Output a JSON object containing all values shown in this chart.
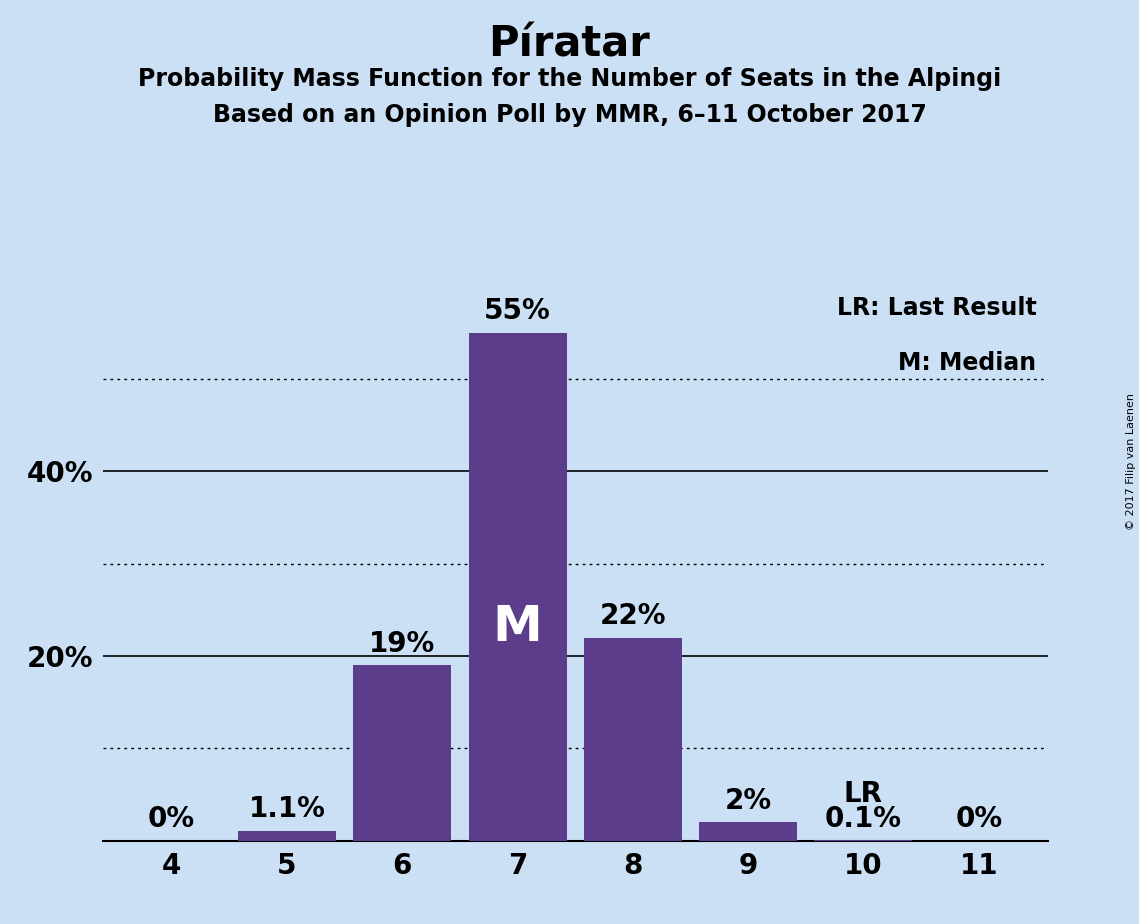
{
  "title": "Píratar",
  "subtitle1": "Probability Mass Function for the Number of Seats in the Alpingi",
  "subtitle2": "Based on an Opinion Poll by MMR, 6–11 October 2017",
  "copyright": "© 2017 Filip van Laenen",
  "categories": [
    4,
    5,
    6,
    7,
    8,
    9,
    10,
    11
  ],
  "values": [
    0.0,
    1.1,
    19.0,
    55.0,
    22.0,
    2.0,
    0.1,
    0.0
  ],
  "labels": [
    "0%",
    "1.1%",
    "19%",
    "55%",
    "22%",
    "2%",
    "0.1%",
    "0%"
  ],
  "bar_color": "#5b3d8c",
  "background_color": "#cce0f5",
  "median_seat": 7,
  "last_result_seat": 10,
  "legend_lr": "LR: Last Result",
  "legend_m": "M: Median",
  "solid_grid_lines": [
    20,
    40
  ],
  "dotted_grid_lines": [
    10,
    30,
    50
  ],
  "ylim": [
    0,
    60
  ],
  "title_fontsize": 30,
  "subtitle_fontsize": 17,
  "label_fontsize": 20,
  "tick_fontsize": 20,
  "legend_fontsize": 17,
  "median_label_fontsize": 36,
  "lr_label_fontsize": 20,
  "copyright_fontsize": 8,
  "ytick_positions": [
    20,
    40
  ],
  "ytick_labels": [
    "20%",
    "40%"
  ]
}
